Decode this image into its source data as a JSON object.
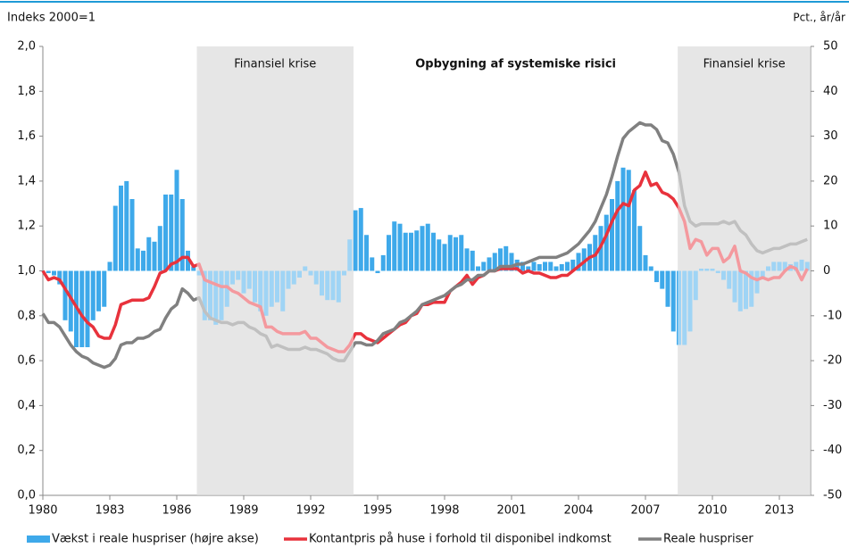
{
  "chart_data": {
    "type": "combo",
    "y_label": "Indeks 2000=1",
    "y2_label": "Pct., år/år",
    "annotation": "Opbygning af systemiske risici",
    "regions": [
      {
        "start": 1986.9,
        "end": 1993.92,
        "label": "Finansiel krise"
      },
      {
        "start": 2008.45,
        "end": 2014.4,
        "label": "Finansiel krise"
      }
    ],
    "xlim": [
      1980,
      2014.4
    ],
    "xticks": [
      1980,
      1983,
      1986,
      1989,
      1992,
      1995,
      1998,
      2001,
      2004,
      2007,
      2010,
      2013
    ],
    "ylim": [
      0,
      2
    ],
    "yticks": [
      {
        "value": 0,
        "label": "0,0"
      },
      {
        "value": 0.2,
        "label": "0,2"
      },
      {
        "value": 0.4,
        "label": "0,4"
      },
      {
        "value": 0.6,
        "label": "0,6"
      },
      {
        "value": 0.8,
        "label": "0,8"
      },
      {
        "value": 1,
        "label": "1,0"
      },
      {
        "value": 1.2,
        "label": "1,2"
      },
      {
        "value": 1.4,
        "label": "1,4"
      },
      {
        "value": 1.6,
        "label": "1,6"
      },
      {
        "value": 1.8,
        "label": "1,8"
      },
      {
        "value": 2,
        "label": "2,0"
      }
    ],
    "y2lim": [
      -50,
      50
    ],
    "y2ticks": [
      -50,
      -40,
      -30,
      -20,
      -10,
      0,
      10,
      20,
      30,
      40,
      50
    ],
    "x": [
      1980,
      1980.25,
      1980.5,
      1980.75,
      1981,
      1981.25,
      1981.5,
      1981.75,
      1982,
      1982.25,
      1982.5,
      1982.75,
      1983,
      1983.25,
      1983.5,
      1983.75,
      1984,
      1984.25,
      1984.5,
      1984.75,
      1985,
      1985.25,
      1985.5,
      1985.75,
      1986,
      1986.25,
      1986.5,
      1986.75,
      1987,
      1987.25,
      1987.5,
      1987.75,
      1988,
      1988.25,
      1988.5,
      1988.75,
      1989,
      1989.25,
      1989.5,
      1989.75,
      1990,
      1990.25,
      1990.5,
      1990.75,
      1991,
      1991.25,
      1991.5,
      1991.75,
      1992,
      1992.25,
      1992.5,
      1992.75,
      1993,
      1993.25,
      1993.5,
      1993.75,
      1994,
      1994.25,
      1994.5,
      1994.75,
      1995,
      1995.25,
      1995.5,
      1995.75,
      1996,
      1996.25,
      1996.5,
      1996.75,
      1997,
      1997.25,
      1997.5,
      1997.75,
      1998,
      1998.25,
      1998.5,
      1998.75,
      1999,
      1999.25,
      1999.5,
      1999.75,
      2000,
      2000.25,
      2000.5,
      2000.75,
      2001,
      2001.25,
      2001.5,
      2001.75,
      2002,
      2002.25,
      2002.5,
      2002.75,
      2003,
      2003.25,
      2003.5,
      2003.75,
      2004,
      2004.25,
      2004.5,
      2004.75,
      2005,
      2005.25,
      2005.5,
      2005.75,
      2006,
      2006.25,
      2006.5,
      2006.75,
      2007,
      2007.25,
      2007.5,
      2007.75,
      2008,
      2008.25,
      2008.5,
      2008.75,
      2009,
      2009.25,
      2009.5,
      2009.75,
      2010,
      2010.25,
      2010.5,
      2010.75,
      2011,
      2011.25,
      2011.5,
      2011.75,
      2012,
      2012.25,
      2012.5,
      2012.75,
      2013,
      2013.25,
      2013.5,
      2013.75,
      2014,
      2014.25
    ],
    "series": [
      {
        "name": "Vækst i reale huspriser (højre akse)",
        "type": "bar",
        "axis": "y2",
        "color": "#3ea9ea",
        "values": [
          0,
          -0.5,
          -1,
          -3,
          -11,
          -13.5,
          -17,
          -17,
          -17,
          -11,
          -9,
          -8,
          2,
          14.5,
          19,
          20,
          16,
          5,
          4.5,
          7.5,
          6.5,
          10,
          17,
          17,
          22.5,
          16,
          4.5,
          1,
          -1,
          -11,
          -11,
          -12,
          -11,
          -8,
          -3,
          -2,
          -5,
          -4,
          -7,
          -9,
          -10,
          -8,
          -7,
          -9,
          -4,
          -3,
          -1.5,
          1,
          -1,
          -3,
          -5.5,
          -6.5,
          -6.5,
          -7,
          -1,
          7,
          13.5,
          14,
          8,
          3,
          -0.5,
          3.5,
          8,
          11,
          10.5,
          8.5,
          8.5,
          9,
          10,
          10.5,
          8.5,
          7,
          6,
          8,
          7.5,
          8,
          5,
          4.5,
          1,
          2,
          3,
          4,
          5,
          5.5,
          4,
          2.5,
          2,
          1,
          2,
          1.5,
          2,
          2,
          1,
          1.5,
          2,
          2.5,
          4,
          5,
          6,
          8,
          10,
          12.5,
          16,
          20,
          23,
          22.5,
          18,
          10,
          3.5,
          1,
          -2.5,
          -4,
          -8,
          -13.5,
          -16.5,
          -16.5,
          -13.5,
          -6.5,
          0.5,
          0.5,
          0.5,
          -0.5,
          -2,
          -4,
          -7,
          -9,
          -8.5,
          -8,
          -5,
          -1.5,
          1,
          2,
          2,
          2,
          1.5,
          2,
          2.5,
          2
        ]
      },
      {
        "name": "Kontantpris på huse i forhold til disponibel indkomst",
        "type": "line",
        "color": "#e8323c",
        "values": [
          1.0,
          0.96,
          0.97,
          0.96,
          0.92,
          0.88,
          0.84,
          0.8,
          0.77,
          0.75,
          0.71,
          0.7,
          0.7,
          0.76,
          0.85,
          0.86,
          0.87,
          0.87,
          0.87,
          0.88,
          0.93,
          0.99,
          1.0,
          1.03,
          1.04,
          1.06,
          1.06,
          1.02,
          1.03,
          0.96,
          0.95,
          0.94,
          0.93,
          0.93,
          0.91,
          0.9,
          0.88,
          0.86,
          0.85,
          0.84,
          0.75,
          0.75,
          0.73,
          0.72,
          0.72,
          0.72,
          0.72,
          0.73,
          0.7,
          0.7,
          0.68,
          0.66,
          0.65,
          0.64,
          0.64,
          0.67,
          0.72,
          0.72,
          0.7,
          0.69,
          0.68,
          0.7,
          0.72,
          0.74,
          0.76,
          0.77,
          0.8,
          0.81,
          0.85,
          0.85,
          0.86,
          0.86,
          0.86,
          0.91,
          0.93,
          0.95,
          0.98,
          0.94,
          0.97,
          0.98,
          1.0,
          1.0,
          1.01,
          1.01,
          1.01,
          1.01,
          0.99,
          1.0,
          0.99,
          0.99,
          0.98,
          0.97,
          0.97,
          0.98,
          0.98,
          1.0,
          1.02,
          1.04,
          1.06,
          1.07,
          1.11,
          1.16,
          1.22,
          1.27,
          1.3,
          1.29,
          1.36,
          1.38,
          1.44,
          1.38,
          1.39,
          1.35,
          1.34,
          1.32,
          1.28,
          1.22,
          1.1,
          1.14,
          1.13,
          1.07,
          1.1,
          1.1,
          1.04,
          1.06,
          1.11,
          1.0,
          0.99,
          0.97,
          0.96,
          0.97,
          0.96,
          0.97,
          0.97,
          1.0,
          1.02,
          1.01,
          0.96,
          1.01
        ]
      },
      {
        "name": "Reale huspriser",
        "type": "line",
        "color": "#808080",
        "values": [
          0.81,
          0.77,
          0.77,
          0.75,
          0.71,
          0.67,
          0.64,
          0.62,
          0.61,
          0.59,
          0.58,
          0.57,
          0.58,
          0.61,
          0.67,
          0.68,
          0.68,
          0.7,
          0.7,
          0.71,
          0.73,
          0.74,
          0.79,
          0.83,
          0.85,
          0.92,
          0.9,
          0.87,
          0.88,
          0.82,
          0.79,
          0.78,
          0.77,
          0.77,
          0.76,
          0.77,
          0.77,
          0.75,
          0.74,
          0.72,
          0.71,
          0.66,
          0.67,
          0.66,
          0.65,
          0.65,
          0.65,
          0.66,
          0.65,
          0.65,
          0.64,
          0.63,
          0.61,
          0.6,
          0.6,
          0.64,
          0.68,
          0.68,
          0.67,
          0.67,
          0.69,
          0.72,
          0.73,
          0.74,
          0.77,
          0.78,
          0.8,
          0.82,
          0.85,
          0.86,
          0.87,
          0.88,
          0.89,
          0.91,
          0.93,
          0.94,
          0.96,
          0.96,
          0.98,
          0.98,
          1.0,
          1.0,
          1.02,
          1.02,
          1.02,
          1.03,
          1.03,
          1.04,
          1.05,
          1.06,
          1.06,
          1.06,
          1.06,
          1.07,
          1.08,
          1.1,
          1.12,
          1.15,
          1.18,
          1.22,
          1.28,
          1.34,
          1.42,
          1.51,
          1.59,
          1.62,
          1.64,
          1.66,
          1.65,
          1.65,
          1.63,
          1.58,
          1.57,
          1.52,
          1.44,
          1.29,
          1.22,
          1.2,
          1.21,
          1.21,
          1.21,
          1.21,
          1.22,
          1.21,
          1.22,
          1.18,
          1.16,
          1.12,
          1.09,
          1.08,
          1.09,
          1.1,
          1.1,
          1.11,
          1.12,
          1.12,
          1.13,
          1.14
        ]
      }
    ]
  }
}
